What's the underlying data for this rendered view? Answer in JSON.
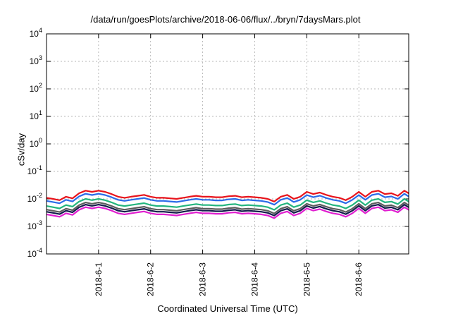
{
  "chart_data": {
    "type": "line",
    "title": "/data/run/goesPlots/archive/2018-06-06/flux/../bryn/7daysMars.plot",
    "xlabel": "Coordinated Universal Time (UTC)",
    "ylabel": "cSv/day",
    "yscale": "log",
    "ylim": [
      0.0001,
      10000
    ],
    "y_ticks": [
      {
        "value": 0.0001,
        "base": "10",
        "exp": "-4"
      },
      {
        "value": 0.001,
        "base": "10",
        "exp": "-3"
      },
      {
        "value": 0.01,
        "base": "10",
        "exp": "-2"
      },
      {
        "value": 0.1,
        "base": "10",
        "exp": "-1"
      },
      {
        "value": 1,
        "base": "10",
        "exp": "0"
      },
      {
        "value": 10,
        "base": "10",
        "exp": "1"
      },
      {
        "value": 100,
        "base": "10",
        "exp": "2"
      },
      {
        "value": 1000,
        "base": "10",
        "exp": "3"
      },
      {
        "value": 10000,
        "base": "10",
        "exp": "4"
      }
    ],
    "xlim": [
      "2018-05-31 00:00",
      "2018-06-06 23:00"
    ],
    "x_ticks": [
      "2018-6-1",
      "2018-6-2",
      "2018-6-3",
      "2018-6-4",
      "2018-6-5",
      "2018-6-6"
    ],
    "grid": true,
    "legend": "none",
    "colors": [
      "#e8131b",
      "#2b6be8",
      "#23b57e",
      "#5d5d5d",
      "#141c4c",
      "#e01fd0"
    ],
    "base_series": [
      [
        "2018-05-31 00:00",
        0.011
      ],
      [
        "2018-05-31 03:00",
        0.01
      ],
      [
        "2018-05-31 06:00",
        0.009
      ],
      [
        "2018-05-31 09:00",
        0.012
      ],
      [
        "2018-05-31 12:00",
        0.0105
      ],
      [
        "2018-05-31 15:00",
        0.016
      ],
      [
        "2018-05-31 18:00",
        0.02
      ],
      [
        "2018-05-31 21:00",
        0.018
      ],
      [
        "2018-06-01 00:00",
        0.02
      ],
      [
        "2018-06-01 03:00",
        0.018
      ],
      [
        "2018-06-01 06:00",
        0.015
      ],
      [
        "2018-06-01 09:00",
        0.012
      ],
      [
        "2018-06-01 12:00",
        0.011
      ],
      [
        "2018-06-01 15:00",
        0.012
      ],
      [
        "2018-06-01 18:00",
        0.013
      ],
      [
        "2018-06-01 21:00",
        0.014
      ],
      [
        "2018-06-02 00:00",
        0.012
      ],
      [
        "2018-06-02 03:00",
        0.011
      ],
      [
        "2018-06-02 06:00",
        0.011
      ],
      [
        "2018-06-02 09:00",
        0.0105
      ],
      [
        "2018-06-02 12:00",
        0.01
      ],
      [
        "2018-06-02 15:00",
        0.011
      ],
      [
        "2018-06-02 18:00",
        0.012
      ],
      [
        "2018-06-02 21:00",
        0.013
      ],
      [
        "2018-06-03 00:00",
        0.012
      ],
      [
        "2018-06-03 03:00",
        0.012
      ],
      [
        "2018-06-03 06:00",
        0.0115
      ],
      [
        "2018-06-03 09:00",
        0.0115
      ],
      [
        "2018-06-03 12:00",
        0.0125
      ],
      [
        "2018-06-03 15:00",
        0.013
      ],
      [
        "2018-06-03 18:00",
        0.0115
      ],
      [
        "2018-06-03 21:00",
        0.012
      ],
      [
        "2018-06-04 00:00",
        0.0115
      ],
      [
        "2018-06-04 03:00",
        0.011
      ],
      [
        "2018-06-04 06:00",
        0.01
      ],
      [
        "2018-06-04 09:00",
        0.008
      ],
      [
        "2018-06-04 12:00",
        0.012
      ],
      [
        "2018-06-04 15:00",
        0.014
      ],
      [
        "2018-06-04 18:00",
        0.01
      ],
      [
        "2018-06-04 21:00",
        0.012
      ],
      [
        "2018-06-05 00:00",
        0.018
      ],
      [
        "2018-06-05 03:00",
        0.015
      ],
      [
        "2018-06-05 06:00",
        0.017
      ],
      [
        "2018-06-05 09:00",
        0.014
      ],
      [
        "2018-06-05 12:00",
        0.012
      ],
      [
        "2018-06-05 15:00",
        0.011
      ],
      [
        "2018-06-05 18:00",
        0.009
      ],
      [
        "2018-06-05 21:00",
        0.012
      ],
      [
        "2018-06-06 00:00",
        0.018
      ],
      [
        "2018-06-06 03:00",
        0.012
      ],
      [
        "2018-06-06 06:00",
        0.018
      ],
      [
        "2018-06-06 09:00",
        0.02
      ],
      [
        "2018-06-06 12:00",
        0.015
      ],
      [
        "2018-06-06 15:00",
        0.016
      ],
      [
        "2018-06-06 18:00",
        0.013
      ],
      [
        "2018-06-06 21:00",
        0.02
      ],
      [
        "2018-06-06 23:00",
        0.016
      ]
    ],
    "series": [
      {
        "scale": 1.0
      },
      {
        "scale": 0.77
      },
      {
        "scale": 0.5
      },
      {
        "scale": 0.37
      },
      {
        "scale": 0.31
      },
      {
        "scale": 0.25
      }
    ]
  }
}
